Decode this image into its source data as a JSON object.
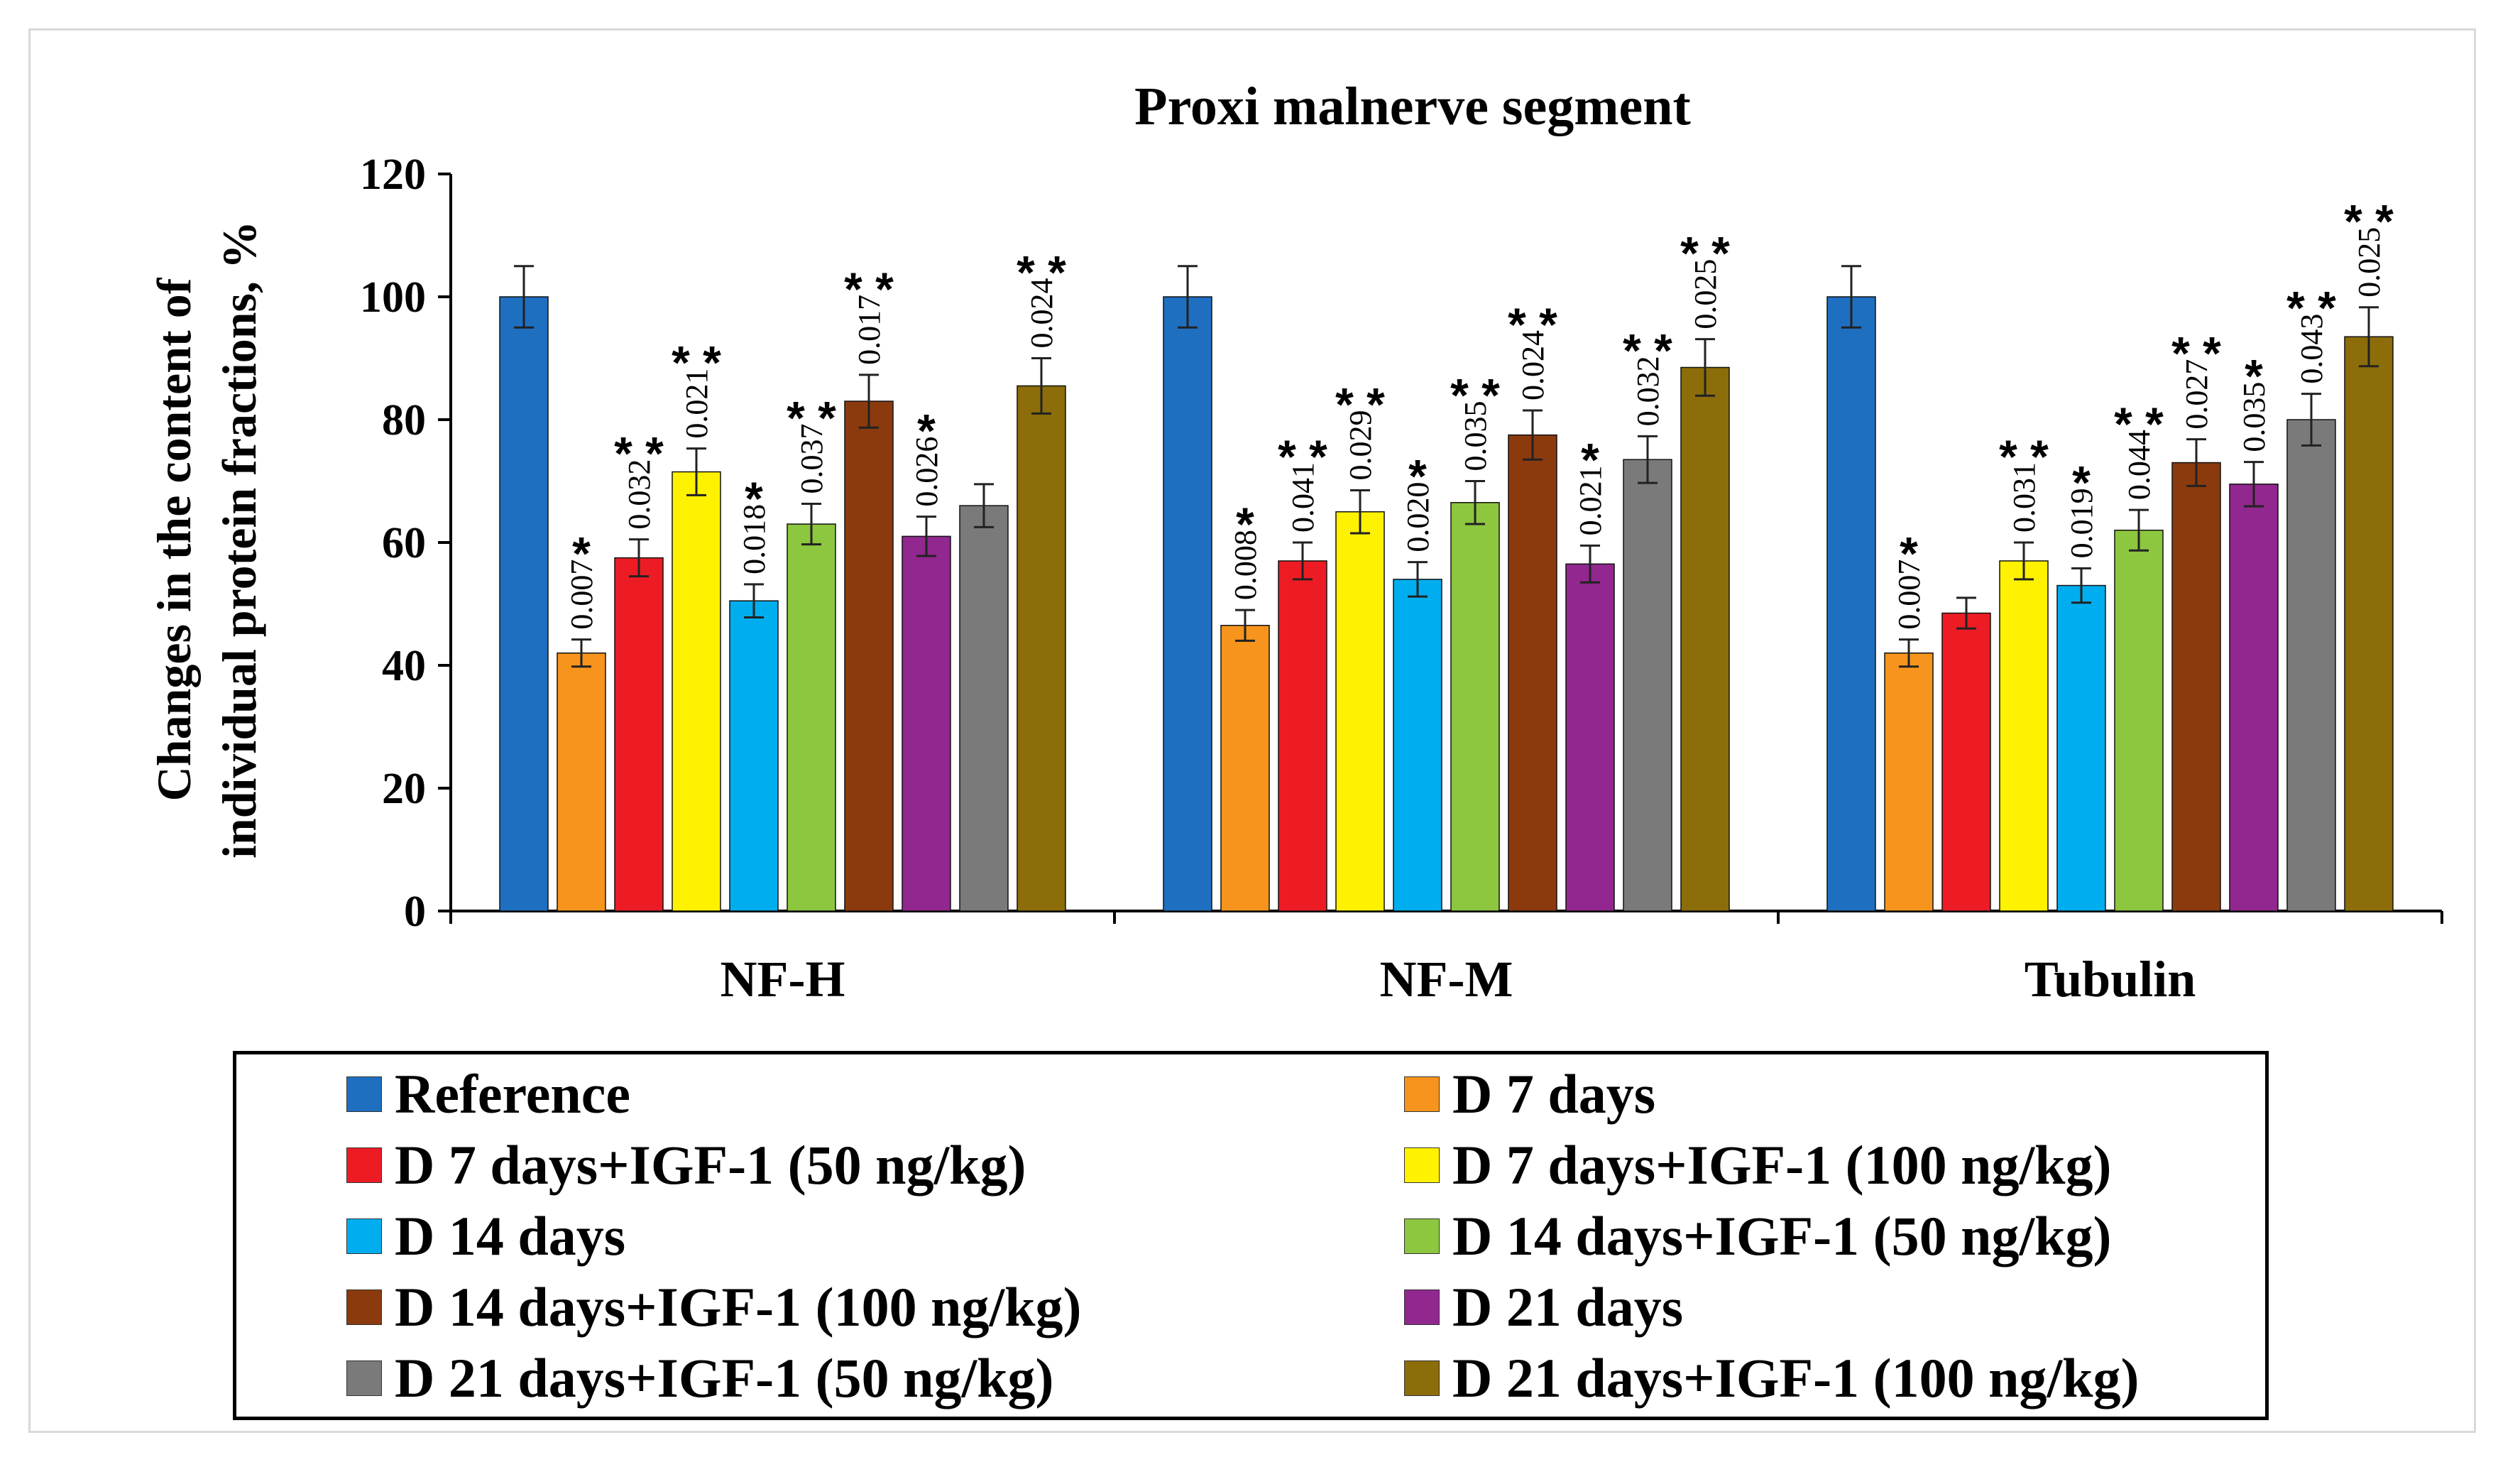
{
  "chart_data": {
    "type": "bar",
    "title": "Proxi malnerve segment",
    "ylabel_line1": "Changes in the content of",
    "ylabel_line2": "individual protein fractions, %",
    "xlabel": "",
    "ylim": [
      0,
      120
    ],
    "yticks": [
      0,
      20,
      40,
      60,
      80,
      100,
      120
    ],
    "categories": [
      "NF-H",
      "NF-M",
      "Tubulin"
    ],
    "series": [
      {
        "name": "Reference",
        "color": "#1f6fc1",
        "values": [
          100,
          100,
          100
        ],
        "errors": [
          5,
          5,
          5
        ],
        "pvalues": [
          "",
          "",
          ""
        ],
        "stars": [
          "",
          "",
          ""
        ]
      },
      {
        "name": "D 7 days",
        "color": "#f7941d",
        "values": [
          42,
          46.5,
          42
        ],
        "errors": [
          2.2,
          2.5,
          2.2
        ],
        "pvalues": [
          "0.007",
          "0.008",
          "0.007"
        ],
        "stars": [
          "*",
          "*",
          "*"
        ]
      },
      {
        "name": "D 7 days+IGF-1 (50 ng/kg)",
        "color": "#ed1c24",
        "values": [
          57.5,
          57,
          48.5
        ],
        "errors": [
          3,
          3,
          2.5
        ],
        "pvalues": [
          "0.032",
          "0.041",
          ""
        ],
        "stars": [
          "**",
          "**",
          ""
        ]
      },
      {
        "name": "D 7 days+IGF-1 (100 ng/kg)",
        "color": "#fff200",
        "values": [
          71.5,
          65,
          57
        ],
        "errors": [
          3.8,
          3.5,
          3
        ],
        "pvalues": [
          "0.021",
          "0.029",
          "0.031"
        ],
        "stars": [
          "**",
          "**",
          "**"
        ]
      },
      {
        "name": "D 14 days",
        "color": "#00aeef",
        "values": [
          50.5,
          54,
          53
        ],
        "errors": [
          2.7,
          2.8,
          2.8
        ],
        "pvalues": [
          "0.018",
          "0.020",
          "0.019"
        ],
        "stars": [
          "*",
          "*",
          "*"
        ]
      },
      {
        "name": "D 14 days+IGF-1 (50 ng/kg)",
        "color": "#8dc63f",
        "values": [
          63,
          66.5,
          62
        ],
        "errors": [
          3.3,
          3.5,
          3.3
        ],
        "pvalues": [
          "0.037",
          "0.035",
          "0.044"
        ],
        "stars": [
          "**",
          "**",
          "**"
        ]
      },
      {
        "name": "D 14 days+IGF-1 (100 ng/kg)",
        "color": "#8b3a0e",
        "values": [
          83,
          77.5,
          73
        ],
        "errors": [
          4.3,
          4,
          3.8
        ],
        "pvalues": [
          "0.017",
          "0.024",
          "0.027"
        ],
        "stars": [
          "**",
          "**",
          "**"
        ]
      },
      {
        "name": "D 21 days",
        "color": "#92278f",
        "values": [
          61,
          56.5,
          69.5
        ],
        "errors": [
          3.2,
          3,
          3.6
        ],
        "pvalues": [
          "0.026",
          "0.021",
          "0.035"
        ],
        "stars": [
          "*",
          "*",
          "*"
        ]
      },
      {
        "name": "D 21 days+IGF-1 (50 ng/kg)",
        "color": "#7a7a7a",
        "values": [
          66,
          73.5,
          80
        ],
        "errors": [
          3.5,
          3.8,
          4.2
        ],
        "pvalues": [
          "",
          "0.032",
          "0.043"
        ],
        "stars": [
          "",
          "**",
          "**"
        ]
      },
      {
        "name": "D 21 days+IGF-1 (100 ng/kg)",
        "color": "#8c6d0a",
        "values": [
          85.5,
          88.5,
          93.5
        ],
        "errors": [
          4.5,
          4.6,
          4.8
        ],
        "pvalues": [
          "0.024",
          "0.025",
          "0.025"
        ],
        "stars": [
          "**",
          "**",
          "**"
        ]
      }
    ],
    "legend_position": "bottom"
  }
}
